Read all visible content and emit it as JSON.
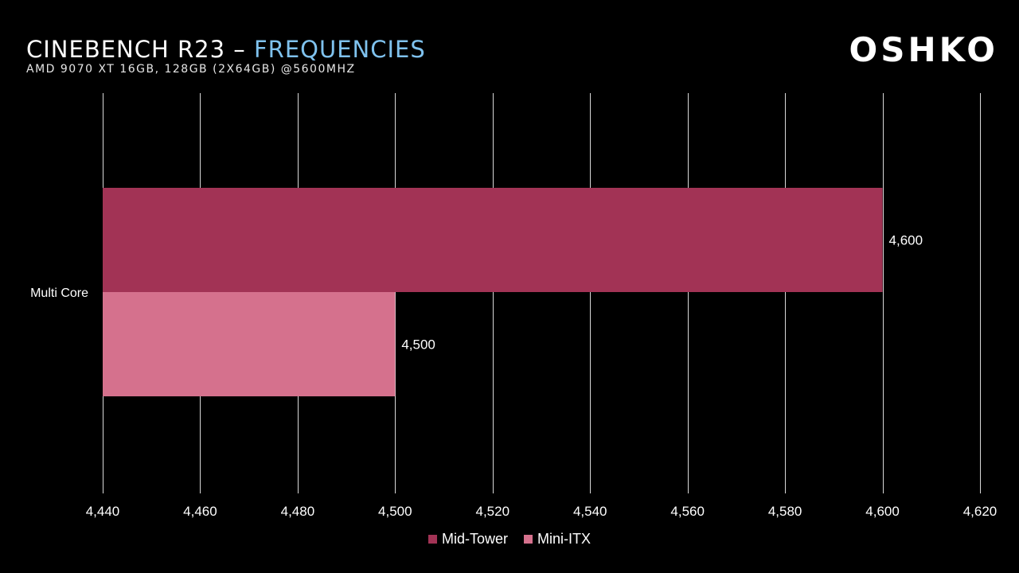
{
  "header": {
    "title_main": "CINEBENCH R23 – ",
    "title_accent": "FREQUENCIES",
    "subtitle": "AMD 9070 XT 16GB, 128GB (2X64GB) @5600MHZ",
    "logo": "OSHKO"
  },
  "chart_data": {
    "type": "bar",
    "orientation": "horizontal",
    "categories": [
      "Multi Core"
    ],
    "series": [
      {
        "name": "Mid-Tower",
        "values": [
          4600
        ],
        "color": "#a23355"
      },
      {
        "name": "Mini-ITX",
        "values": [
          4500
        ],
        "color": "#d5718d"
      }
    ],
    "data_labels": [
      "4,600",
      "4,500"
    ],
    "xlim": [
      4440,
      4620
    ],
    "x_ticks": [
      4440,
      4460,
      4480,
      4500,
      4520,
      4540,
      4560,
      4580,
      4600,
      4620
    ],
    "x_tick_labels": [
      "4,440",
      "4,460",
      "4,480",
      "4,500",
      "4,520",
      "4,540",
      "4,560",
      "4,580",
      "4,600",
      "4,620"
    ],
    "grid": true,
    "legend_position": "bottom"
  }
}
